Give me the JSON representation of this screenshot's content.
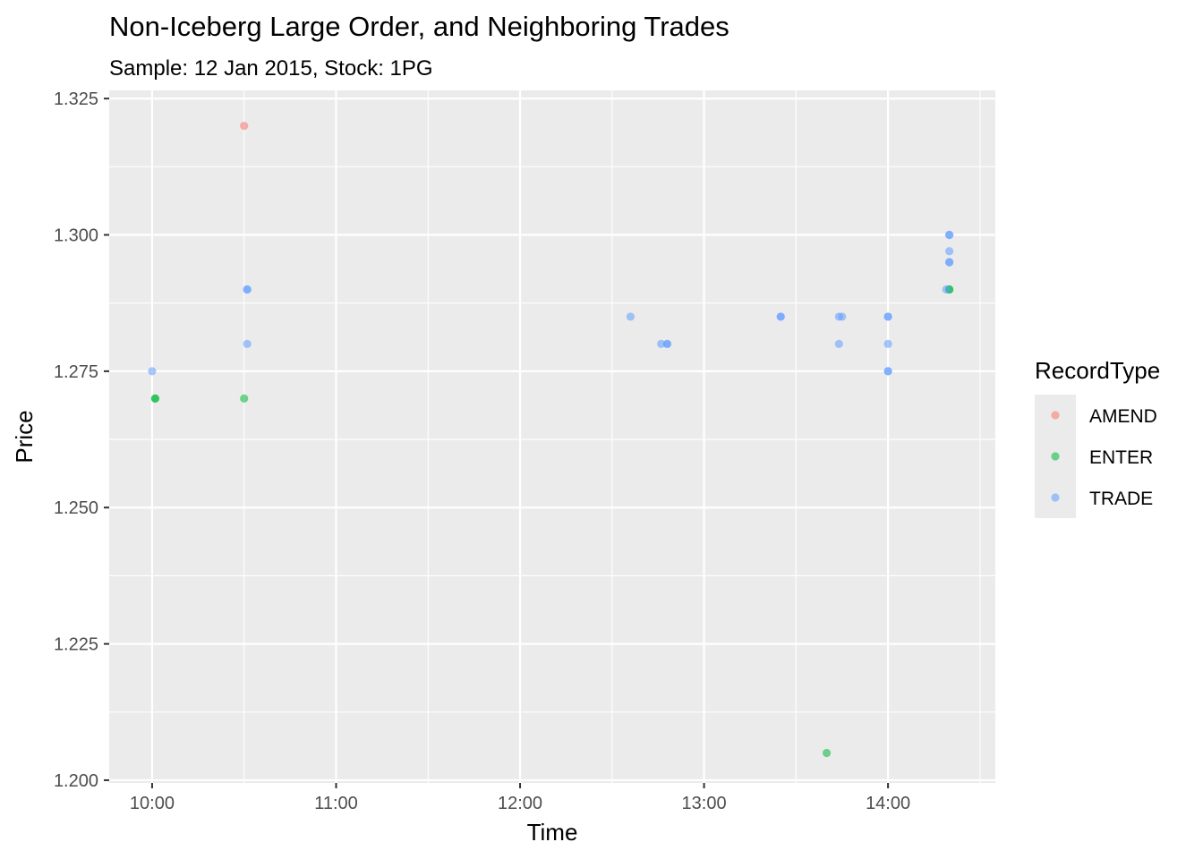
{
  "chart_data": {
    "type": "scatter",
    "title": "Non-Iceberg Large Order, and Neighboring Trades",
    "subtitle": "Sample: 12 Jan 2015, Stock: 1PG",
    "xlabel": "Time",
    "ylabel": "Price",
    "x_ticks": [
      "10:00",
      "11:00",
      "12:00",
      "13:00",
      "14:00"
    ],
    "y_ticks": [
      "1.200",
      "1.225",
      "1.250",
      "1.275",
      "1.300",
      "1.325"
    ],
    "xlim": [
      "09:46",
      "14:35"
    ],
    "ylim": [
      1.1995,
      1.3265
    ],
    "grid": true,
    "background": "#ebebeb",
    "legend": {
      "title": "RecordType",
      "placement": "right"
    },
    "series": [
      {
        "name": "AMEND",
        "color": "#f8766d",
        "points": [
          {
            "x": "10:30",
            "y": 1.32
          }
        ]
      },
      {
        "name": "ENTER",
        "color": "#00ba38",
        "points": [
          {
            "x": "10:01",
            "y": 1.27
          },
          {
            "x": "10:01",
            "y": 1.27
          },
          {
            "x": "10:30",
            "y": 1.27
          },
          {
            "x": "13:40",
            "y": 1.205
          },
          {
            "x": "14:20",
            "y": 1.29
          },
          {
            "x": "14:20",
            "y": 1.29
          }
        ]
      },
      {
        "name": "TRADE",
        "color": "#619cff",
        "points": [
          {
            "x": "10:00",
            "y": 1.275
          },
          {
            "x": "10:31",
            "y": 1.29
          },
          {
            "x": "10:31",
            "y": 1.29
          },
          {
            "x": "10:31",
            "y": 1.28
          },
          {
            "x": "12:36",
            "y": 1.285
          },
          {
            "x": "12:46",
            "y": 1.28
          },
          {
            "x": "12:48",
            "y": 1.28
          },
          {
            "x": "12:48",
            "y": 1.28
          },
          {
            "x": "13:25",
            "y": 1.285
          },
          {
            "x": "13:25",
            "y": 1.285
          },
          {
            "x": "13:44",
            "y": 1.285
          },
          {
            "x": "13:45",
            "y": 1.285
          },
          {
            "x": "13:44",
            "y": 1.28
          },
          {
            "x": "14:00",
            "y": 1.285
          },
          {
            "x": "14:00",
            "y": 1.285
          },
          {
            "x": "14:00",
            "y": 1.28
          },
          {
            "x": "14:00",
            "y": 1.275
          },
          {
            "x": "14:00",
            "y": 1.275
          },
          {
            "x": "14:19",
            "y": 1.29
          },
          {
            "x": "14:20",
            "y": 1.3
          },
          {
            "x": "14:20",
            "y": 1.3
          },
          {
            "x": "14:20",
            "y": 1.297
          },
          {
            "x": "14:20",
            "y": 1.295
          },
          {
            "x": "14:20",
            "y": 1.295
          }
        ]
      }
    ]
  }
}
